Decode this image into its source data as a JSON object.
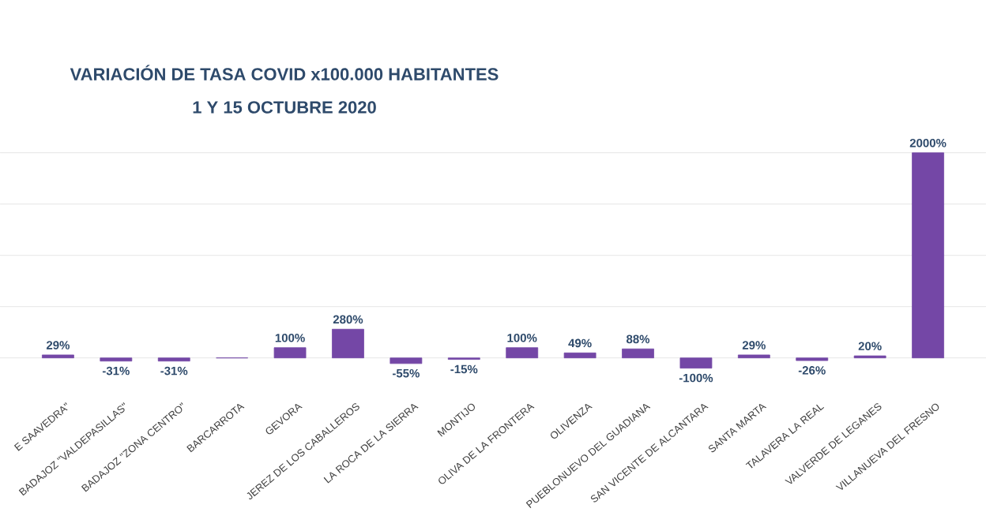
{
  "chart_data": {
    "type": "bar",
    "title": "VARIACIÓN DE TASA COVID x100.000 HABITANTES",
    "subtitle": "1 Y 15 OCTUBRE 2020",
    "categories": [
      "E SAAVEDRA\"",
      "BADAJOZ \"VALDEPASILLAS\"",
      "BADAJOZ \"ZONA CENTRO\"",
      "BARCARROTA",
      "GEVORA",
      "JEREZ DE LOS CABALLEROS",
      "LA ROCA DE LA SIERRA",
      "MONTIJO",
      "OLIVA DE LA FRONTERA",
      "OLIVENZA",
      "PUEBLONUEVO DEL GUADIANA",
      "SAN VICENTE DE ALCANTARA",
      "SANTA MARTA",
      "TALAVERA LA REAL",
      "VALVERDE DE LEGANES",
      "VILLANUEVA DEL FRESNO"
    ],
    "values": [
      29,
      -31,
      -31,
      0,
      100,
      280,
      -55,
      -15,
      100,
      49,
      88,
      -100,
      29,
      -26,
      20,
      2000
    ],
    "value_labels": [
      "29%",
      "-31%",
      "-31%",
      null,
      "100%",
      "280%",
      "-55%",
      "-15%",
      "100%",
      "49%",
      "88%",
      "-100%",
      "29%",
      "-26%",
      "20%",
      "2000%"
    ],
    "color": "#7447a6",
    "yticks": [
      {
        "value": 0,
        "label": null
      },
      {
        "value": 500,
        "label": null
      },
      {
        "value": 1000,
        "label": null
      },
      {
        "value": 1500,
        "label": null
      },
      {
        "value": 2000,
        "label": null
      }
    ],
    "grid": "y"
  }
}
